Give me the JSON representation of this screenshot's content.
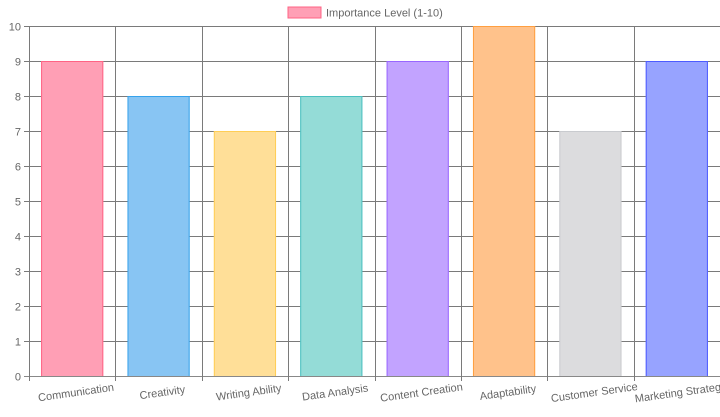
{
  "chart_data": {
    "type": "bar",
    "categories": [
      "Communication",
      "Creativity",
      "Writing Ability",
      "Data Analysis",
      "Content Creation",
      "Adaptability",
      "Customer Service",
      "Marketing Strategy"
    ],
    "series": [
      {
        "name": "Importance Level (1-10)",
        "values": [
          9,
          8,
          7,
          8,
          9,
          10,
          7,
          9
        ],
        "fill_colors": [
          "#ff9fb5",
          "#88c5f3",
          "#ffdf98",
          "#94dcd7",
          "#c2a3ff",
          "#ffc28b",
          "#dcdcde",
          "#97a3ff"
        ],
        "border_colors": [
          "#ff6384",
          "#36a2eb",
          "#ffce56",
          "#4bc0c0",
          "#9966ff",
          "#ff9f40",
          "#c9cbcf",
          "#4d5bff"
        ]
      }
    ],
    "ylim": [
      0,
      10
    ],
    "yticks": [
      "0",
      "1",
      "2",
      "3",
      "4",
      "5",
      "6",
      "7",
      "8",
      "9",
      "10"
    ],
    "legend": {
      "label": "Importance Level (1-10)",
      "color": "#ff9fb5",
      "border_color": "#ff6384",
      "position": "top"
    },
    "grid": true,
    "title": "",
    "xlabel": "",
    "ylabel": ""
  }
}
